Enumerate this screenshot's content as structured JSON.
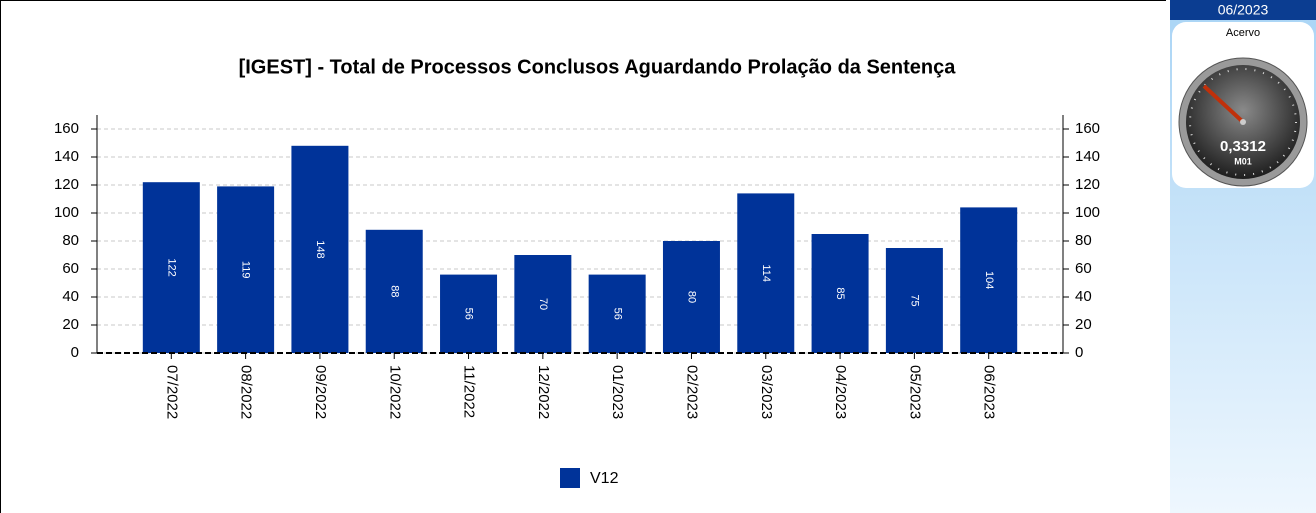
{
  "chart_data": {
    "type": "bar",
    "title": "[IGEST]  - Total de Processos Conclusos Aguardando Prolação da Sentença",
    "categories": [
      "07/2022",
      "08/2022",
      "09/2022",
      "10/2022",
      "11/2022",
      "12/2022",
      "01/2023",
      "02/2023",
      "03/2023",
      "04/2023",
      "05/2023",
      "06/2023"
    ],
    "series": [
      {
        "name": "V12",
        "color": "#003399",
        "values": [
          122,
          119,
          148,
          88,
          56,
          70,
          56,
          80,
          114,
          85,
          75,
          104
        ]
      }
    ],
    "ylim": [
      0,
      170
    ],
    "yticks": [
      0,
      20,
      40,
      60,
      80,
      100,
      120,
      140,
      160
    ],
    "y2lim": [
      0,
      170
    ],
    "y2ticks": [
      0,
      20,
      40,
      60,
      80,
      100,
      120,
      140,
      160
    ],
    "grid": true
  },
  "sidebar": {
    "period": "06/2023",
    "gauge": {
      "label": "Acervo",
      "value_label": "0,3312",
      "sublabel": "M01"
    }
  }
}
